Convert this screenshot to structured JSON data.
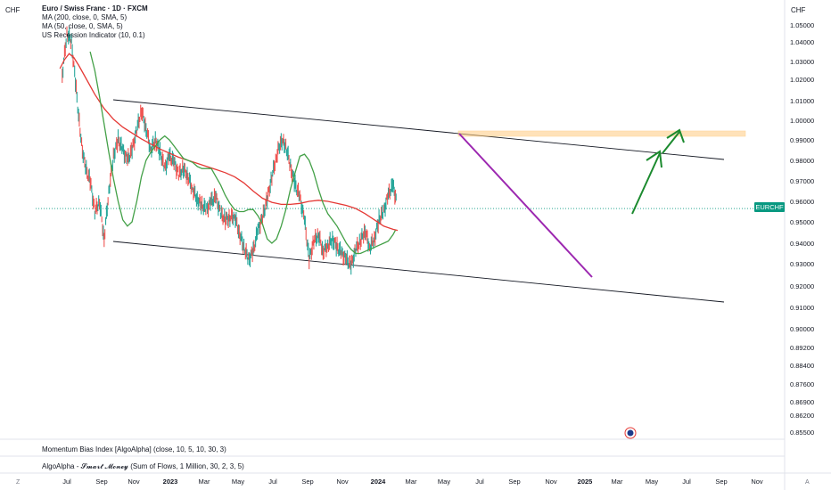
{
  "header": {
    "currency_left": "CHF",
    "currency_right": "CHF",
    "title": "Euro / Swiss Franc · 1D · FXCM",
    "indicators": [
      "MA (200, close, 0, SMA, 5)",
      "MA (50, close, 0, SMA, 5)",
      "US Recession Indicator (10, 0.1)"
    ]
  },
  "symbol_tag": {
    "label": "EURCHF",
    "color": "#089981"
  },
  "lower_panels": [
    "Momentum Bias Index [AlgoAlpha] (close, 10, 5, 10, 30, 3)",
    "AlgoAlpha - 𝓢𝓶𝓪𝓻𝓽 𝓜𝓸𝓷𝓮𝔂  (Sum of Flows, 1 Million, 30, 2, 3, 5)"
  ],
  "bottom_icons": {
    "left": "Z",
    "right": "A"
  },
  "chart_data": {
    "type": "line",
    "y_axis": {
      "position": "right",
      "ticks": [
        "1.05000",
        "1.04000",
        "1.03000",
        "1.02000",
        "1.01000",
        "1.00000",
        "0.99000",
        "0.98000",
        "0.97000",
        "0.96000",
        "0.95000",
        "0.94000",
        "0.93000",
        "0.92000",
        "0.91000",
        "0.90000",
        "0.89200",
        "0.88400",
        "0.87600",
        "0.86900",
        "0.86200",
        "0.85500"
      ]
    },
    "x_axis": {
      "ticks": [
        "Jul",
        "Sep",
        "Nov",
        "2023",
        "Mar",
        "May",
        "Jul",
        "Sep",
        "Nov",
        "2024",
        "Mar",
        "May",
        "Jul",
        "Sep",
        "Nov",
        "2025",
        "Mar",
        "May",
        "Jul",
        "Sep",
        "Nov"
      ],
      "bold": [
        "2023",
        "2024",
        "2025"
      ]
    },
    "current_price": 0.9565,
    "series": [
      {
        "name": "MA (200, close, 0, SMA, 5)",
        "color": "#e53935",
        "x": [
          -15,
          -5,
          5,
          15,
          25,
          40,
          60,
          80,
          100,
          120,
          140,
          160,
          180,
          200,
          220,
          240,
          260,
          280,
          300,
          320,
          340,
          360,
          380,
          400,
          420,
          440,
          460,
          480,
          500,
          520,
          540,
          560,
          580,
          600,
          620,
          640,
          660,
          680,
          700,
          710
        ],
        "y": [
          1.026,
          1.031,
          1.034,
          1.032,
          1.028,
          1.021,
          1.013,
          1.006,
          1.0005,
          0.9965,
          0.9935,
          0.9905,
          0.988,
          0.9855,
          0.9835,
          0.9815,
          0.98,
          0.9785,
          0.977,
          0.9755,
          0.974,
          0.972,
          0.969,
          0.965,
          0.9615,
          0.9595,
          0.9585,
          0.9585,
          0.959,
          0.96,
          0.9605,
          0.96,
          0.959,
          0.958,
          0.9565,
          0.954,
          0.951,
          0.948,
          0.9465,
          0.946
        ]
      },
      {
        "name": "MA (50, close, 0, SMA, 5)",
        "color": "#43a047",
        "x": [
          50,
          60,
          70,
          80,
          90,
          100,
          110,
          120,
          130,
          140,
          150,
          160,
          170,
          180,
          190,
          200,
          210,
          220,
          230,
          240,
          250,
          260,
          270,
          280,
          290,
          300,
          310,
          320,
          330,
          340,
          350,
          360,
          370,
          380,
          390,
          400,
          410,
          420,
          430,
          440,
          450,
          460,
          470,
          480,
          490,
          500,
          510,
          520,
          530,
          540,
          550,
          560,
          570,
          580,
          590,
          600,
          610,
          620,
          630,
          640,
          650,
          660,
          670,
          680,
          690,
          700,
          705
        ],
        "y": [
          1.035,
          1.025,
          1.012,
          0.998,
          0.984,
          0.971,
          0.96,
          0.951,
          0.948,
          0.95,
          0.96,
          0.972,
          0.98,
          0.984,
          0.987,
          0.99,
          0.992,
          0.99,
          0.987,
          0.984,
          0.981,
          0.98,
          0.979,
          0.977,
          0.976,
          0.976,
          0.976,
          0.972,
          0.968,
          0.963,
          0.959,
          0.956,
          0.955,
          0.955,
          0.956,
          0.956,
          0.953,
          0.949,
          0.942,
          0.94,
          0.942,
          0.948,
          0.956,
          0.966,
          0.974,
          0.982,
          0.983,
          0.98,
          0.974,
          0.966,
          0.959,
          0.954,
          0.951,
          0.948,
          0.944,
          0.94,
          0.937,
          0.935,
          0.935,
          0.936,
          0.937,
          0.938,
          0.939,
          0.94,
          0.941,
          0.944,
          0.946
        ]
      },
      {
        "name": "",
        "color": "#26a69a",
        "x": [
          -10,
          0,
          10,
          20,
          30,
          40,
          50,
          60,
          70,
          80,
          90,
          100,
          110,
          120,
          130,
          140,
          150,
          160,
          170,
          180,
          190,
          200,
          210,
          220,
          230,
          240,
          250,
          260,
          270,
          280,
          290,
          300,
          310,
          320,
          330,
          340,
          350,
          360,
          370,
          380,
          390,
          400,
          410,
          420,
          430,
          440,
          450,
          460,
          470,
          480,
          490,
          500,
          510,
          520,
          530,
          540,
          550,
          560,
          570,
          580,
          590,
          600,
          610,
          620,
          630,
          640,
          650,
          660,
          670,
          680,
          690,
          700,
          708
        ],
        "y": [
          1.022,
          1.045,
          1.04,
          1.015,
          0.99,
          0.976,
          0.97,
          0.955,
          0.96,
          0.942,
          0.965,
          0.982,
          0.99,
          0.985,
          0.98,
          0.985,
          0.995,
          1.005,
          0.996,
          0.985,
          0.99,
          0.984,
          0.976,
          0.982,
          0.979,
          0.973,
          0.976,
          0.972,
          0.966,
          0.961,
          0.958,
          0.956,
          0.96,
          0.962,
          0.954,
          0.951,
          0.952,
          0.953,
          0.945,
          0.938,
          0.932,
          0.936,
          0.946,
          0.952,
          0.961,
          0.972,
          0.982,
          0.99,
          0.987,
          0.977,
          0.968,
          0.962,
          0.951,
          0.932,
          0.941,
          0.944,
          0.936,
          0.939,
          0.942,
          0.938,
          0.935,
          0.932,
          0.929,
          0.937,
          0.941,
          0.946,
          0.938,
          0.942,
          0.951,
          0.955,
          0.963,
          0.968,
          0.959
        ]
      }
    ],
    "annotations": [
      {
        "type": "channel-upper",
        "color": "#131722"
      },
      {
        "type": "channel-lower",
        "color": "#131722"
      },
      {
        "type": "trendline",
        "color": "#9c27b0"
      },
      {
        "type": "resistance-zone",
        "color": "#ffcc80"
      },
      {
        "type": "projection-arrows",
        "color": "#1b8a2e"
      }
    ],
    "grid": false
  }
}
